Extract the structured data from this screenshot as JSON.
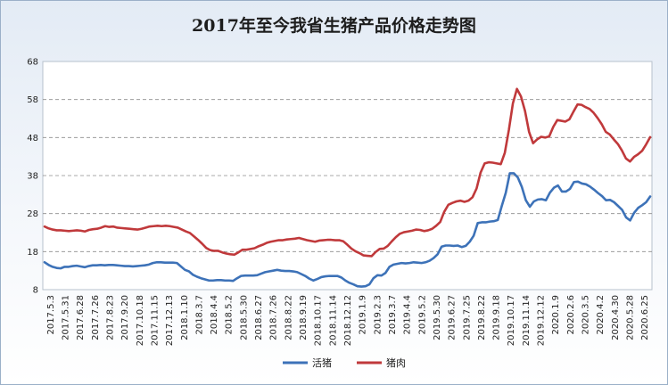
{
  "chart_data": {
    "type": "line",
    "title": "2017年至今我省生猪产品价格走势图",
    "ylim": [
      8,
      68
    ],
    "yticks": [
      8,
      18,
      28,
      38,
      48,
      58,
      68
    ],
    "grid": true,
    "legend_position": "bottom",
    "x_tick_labels": [
      "2017.5.3",
      "2017.5.31",
      "2017.6.28",
      "2017.7.26",
      "2017.8.23",
      "2017.9.20",
      "2017.10.18",
      "2017.11.15",
      "2017.12.13",
      "2018.1.10",
      "2018.3.7",
      "2018.4.4",
      "2018.5.2",
      "2018.5.30",
      "2018.6.27",
      "2018.7.26",
      "2018.8.22",
      "2018.9.19",
      "2018.10.17",
      "2018.11.14",
      "2018.12.12",
      "2019.1.9",
      "2019.2.3",
      "2019.3.7",
      "2019.4.4",
      "2019.5.2",
      "2019.5.30",
      "2019.6.27",
      "2019.7.25",
      "2019.8.22",
      "2019.9.18",
      "2019.10.17",
      "2019.11.14",
      "2019.12.12",
      "2020.1.9",
      "2020.2.6",
      "2020.3.5",
      "2020.4.2",
      "2020.4.30",
      "2020.5.28",
      "2020.6.25"
    ],
    "series": [
      {
        "name": "活猪",
        "color": "#3d72b8",
        "values": [
          15.2,
          14.5,
          14.0,
          13.7,
          13.6,
          14.0,
          14.0,
          14.2,
          14.3,
          14.1,
          13.9,
          14.2,
          14.4,
          14.4,
          14.5,
          14.4,
          14.5,
          14.5,
          14.4,
          14.3,
          14.2,
          14.2,
          14.1,
          14.2,
          14.3,
          14.4,
          14.6,
          15.0,
          15.2,
          15.2,
          15.1,
          15.1,
          15.1,
          15.0,
          14.1,
          13.2,
          12.8,
          11.9,
          11.4,
          11.0,
          10.7,
          10.4,
          10.4,
          10.5,
          10.5,
          10.4,
          10.4,
          10.3,
          11.0,
          11.6,
          11.7,
          11.7,
          11.7,
          11.8,
          12.2,
          12.6,
          12.8,
          13.0,
          13.2,
          13.0,
          12.9,
          12.9,
          12.8,
          12.6,
          12.1,
          11.6,
          10.9,
          10.4,
          10.8,
          11.3,
          11.5,
          11.6,
          11.6,
          11.6,
          11.2,
          10.4,
          9.8,
          9.4,
          8.9,
          8.8,
          8.9,
          9.4,
          11.0,
          11.8,
          11.7,
          12.4,
          14.0,
          14.6,
          14.8,
          15.0,
          14.9,
          15.0,
          15.2,
          15.1,
          15.0,
          15.2,
          15.6,
          16.3,
          17.3,
          19.3,
          19.6,
          19.6,
          19.5,
          19.6,
          19.2,
          19.5,
          20.6,
          22.2,
          25.5,
          25.7,
          25.7,
          25.9,
          26.0,
          26.3,
          30.0,
          33.5,
          38.6,
          38.6,
          37.5,
          35.0,
          31.5,
          29.8,
          31.2,
          31.7,
          31.8,
          31.5,
          33.5,
          34.8,
          35.4,
          33.8,
          33.8,
          34.5,
          36.3,
          36.4,
          35.9,
          35.7,
          35.1,
          34.3,
          33.4,
          32.6,
          31.5,
          31.6,
          31.0,
          30.0,
          29.0,
          27.0,
          26.2,
          28.2,
          29.5,
          30.2,
          31.0,
          32.5
        ]
      },
      {
        "name": "猪肉",
        "color": "#c0393b",
        "values": [
          24.6,
          24.1,
          23.8,
          23.6,
          23.6,
          23.5,
          23.4,
          23.5,
          23.6,
          23.5,
          23.3,
          23.7,
          23.9,
          24.0,
          24.3,
          24.7,
          24.5,
          24.6,
          24.3,
          24.2,
          24.1,
          24.0,
          23.9,
          23.8,
          24.0,
          24.3,
          24.6,
          24.7,
          24.8,
          24.7,
          24.8,
          24.7,
          24.5,
          24.3,
          23.8,
          23.3,
          22.9,
          22.0,
          21.1,
          20.1,
          19.0,
          18.4,
          18.2,
          18.2,
          17.8,
          17.5,
          17.3,
          17.2,
          17.8,
          18.5,
          18.5,
          18.7,
          18.9,
          19.4,
          19.8,
          20.3,
          20.6,
          20.8,
          21.0,
          21.0,
          21.2,
          21.3,
          21.4,
          21.6,
          21.3,
          21.0,
          20.8,
          20.6,
          20.9,
          21.0,
          21.1,
          21.1,
          21.0,
          21.0,
          20.7,
          19.8,
          18.8,
          18.1,
          17.6,
          17.0,
          16.9,
          16.8,
          17.9,
          18.7,
          18.8,
          19.5,
          20.7,
          21.8,
          22.7,
          23.1,
          23.3,
          23.5,
          23.8,
          23.7,
          23.4,
          23.6,
          24.0,
          24.8,
          25.8,
          28.5,
          30.3,
          30.8,
          31.2,
          31.4,
          31.1,
          31.4,
          32.3,
          34.6,
          38.8,
          41.2,
          41.5,
          41.4,
          41.2,
          41.0,
          44.0,
          50.0,
          57.0,
          60.8,
          58.8,
          55.0,
          49.5,
          46.5,
          47.5,
          48.2,
          48.0,
          48.3,
          50.8,
          52.6,
          52.4,
          52.2,
          52.8,
          54.8,
          56.7,
          56.6,
          56.0,
          55.5,
          54.5,
          53.1,
          51.5,
          49.5,
          48.8,
          47.5,
          46.3,
          44.6,
          42.5,
          41.7,
          42.9,
          43.6,
          44.5,
          46.2,
          48.1
        ]
      }
    ]
  }
}
